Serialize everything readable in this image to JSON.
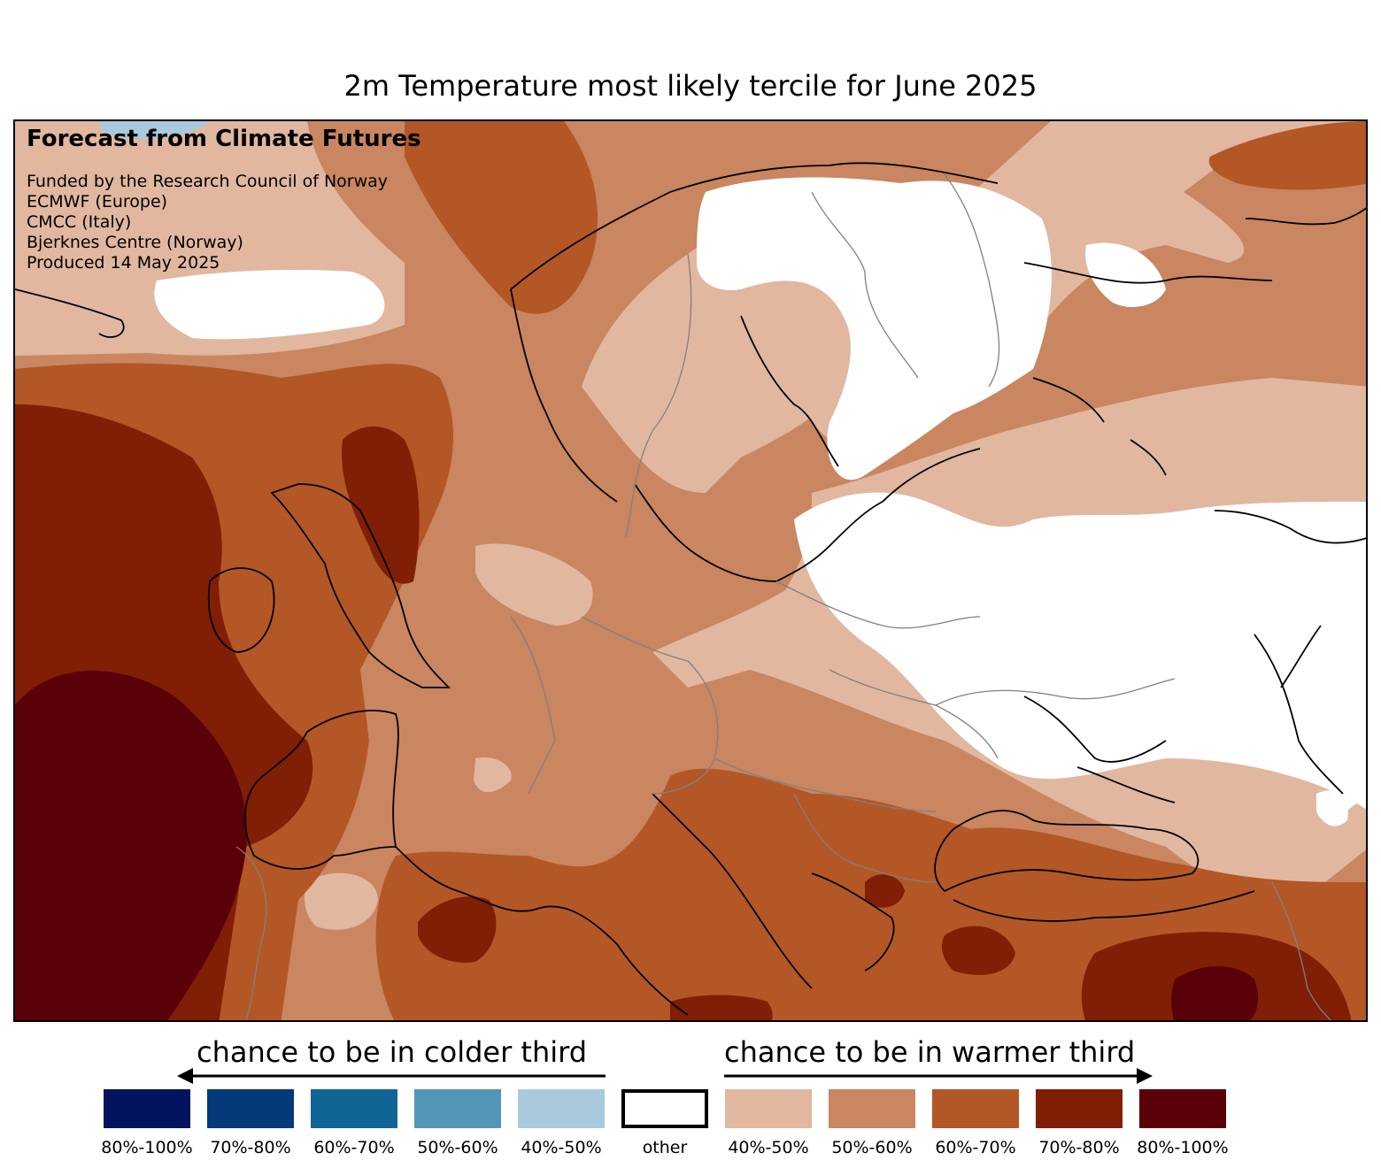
{
  "title": "2m Temperature most likely tercile for June 2025",
  "info": {
    "heading": "Forecast from Climate Futures",
    "lines": [
      "Funded by the Research Council of Norway",
      "ECMWF (Europe)",
      "CMCC (Italy)",
      "Bjerknes Centre (Norway)",
      "Produced 14 May 2025"
    ]
  },
  "legend": {
    "colder_caption": "chance to be in colder third",
    "warmer_caption": "chance to be in warmer third",
    "colder": [
      {
        "label": "80%-100%",
        "color": "#03145e"
      },
      {
        "label": "70%-80%",
        "color": "#053a7a"
      },
      {
        "label": "60%-70%",
        "color": "#116596"
      },
      {
        "label": "50%-60%",
        "color": "#5296b6"
      },
      {
        "label": "40%-50%",
        "color": "#a8cadc"
      }
    ],
    "other": {
      "label": "other",
      "color": "#ffffff"
    },
    "warmer": [
      {
        "label": "40%-50%",
        "color": "#e1b7a0"
      },
      {
        "label": "50%-60%",
        "color": "#c98660"
      },
      {
        "label": "60%-70%",
        "color": "#b35726"
      },
      {
        "label": "70%-80%",
        "color": "#801e06"
      },
      {
        "label": "80%-100%",
        "color": "#5a0008"
      }
    ]
  },
  "colors": {
    "coastline": "#000000",
    "borders": "#808080"
  }
}
